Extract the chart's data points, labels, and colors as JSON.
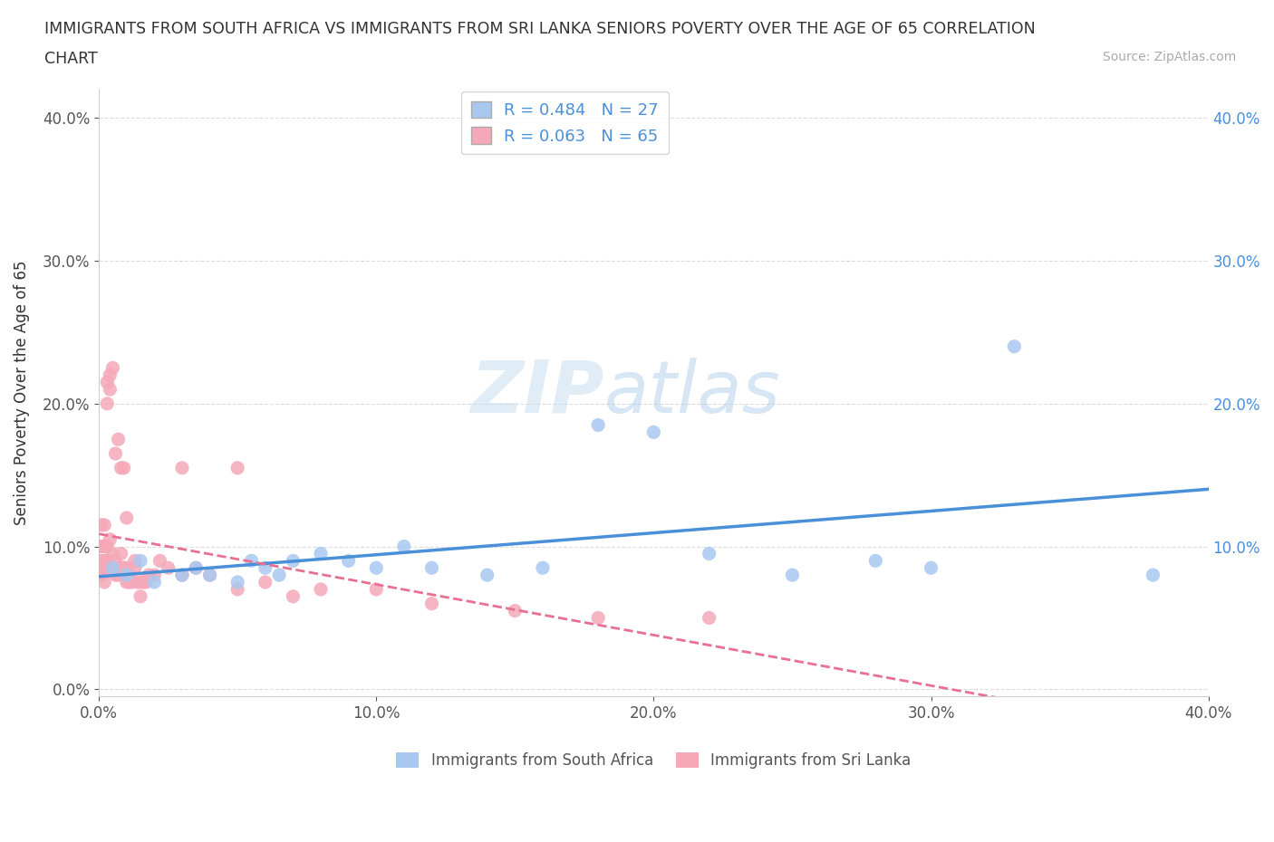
{
  "title_line1": "IMMIGRANTS FROM SOUTH AFRICA VS IMMIGRANTS FROM SRI LANKA SENIORS POVERTY OVER THE AGE OF 65 CORRELATION",
  "title_line2": "CHART",
  "source_text": "Source: ZipAtlas.com",
  "ylabel": "Seniors Poverty Over the Age of 65",
  "watermark_zip": "ZIP",
  "watermark_atlas": "atlas",
  "R_south_africa": 0.484,
  "N_south_africa": 27,
  "R_sri_lanka": 0.063,
  "N_sri_lanka": 65,
  "color_south_africa": "#a8c8f0",
  "color_sri_lanka": "#f5a8b8",
  "trendline_color_south_africa": "#4a90d9",
  "trendline_color_sri_lanka": "#e87090",
  "xlim": [
    0.0,
    0.4
  ],
  "ylim": [
    -0.005,
    0.42
  ],
  "xticks": [
    0.0,
    0.1,
    0.2,
    0.3,
    0.4
  ],
  "yticks": [
    0.0,
    0.1,
    0.2,
    0.3,
    0.4
  ],
  "south_africa_x": [
    0.005,
    0.01,
    0.015,
    0.02,
    0.03,
    0.035,
    0.04,
    0.05,
    0.055,
    0.06,
    0.065,
    0.07,
    0.08,
    0.09,
    0.1,
    0.11,
    0.12,
    0.14,
    0.16,
    0.18,
    0.2,
    0.22,
    0.25,
    0.28,
    0.3,
    0.33,
    0.38
  ],
  "south_africa_y": [
    0.085,
    0.08,
    0.09,
    0.075,
    0.08,
    0.085,
    0.08,
    0.075,
    0.09,
    0.085,
    0.08,
    0.09,
    0.095,
    0.09,
    0.085,
    0.1,
    0.085,
    0.08,
    0.085,
    0.185,
    0.18,
    0.095,
    0.08,
    0.09,
    0.085,
    0.24,
    0.08
  ],
  "sri_lanka_x": [
    0.0,
    0.0,
    0.0,
    0.001,
    0.001,
    0.001,
    0.001,
    0.001,
    0.002,
    0.002,
    0.002,
    0.002,
    0.003,
    0.003,
    0.003,
    0.003,
    0.003,
    0.004,
    0.004,
    0.004,
    0.004,
    0.005,
    0.005,
    0.005,
    0.006,
    0.006,
    0.006,
    0.007,
    0.007,
    0.008,
    0.008,
    0.008,
    0.009,
    0.009,
    0.01,
    0.01,
    0.01,
    0.011,
    0.011,
    0.012,
    0.013,
    0.013,
    0.014,
    0.015,
    0.015,
    0.016,
    0.017,
    0.018,
    0.02,
    0.022,
    0.025,
    0.03,
    0.03,
    0.035,
    0.04,
    0.05,
    0.05,
    0.06,
    0.07,
    0.08,
    0.1,
    0.12,
    0.15,
    0.18,
    0.22
  ],
  "sri_lanka_y": [
    0.08,
    0.09,
    0.1,
    0.085,
    0.09,
    0.1,
    0.115,
    0.08,
    0.075,
    0.09,
    0.1,
    0.115,
    0.085,
    0.09,
    0.1,
    0.2,
    0.215,
    0.085,
    0.105,
    0.22,
    0.21,
    0.085,
    0.095,
    0.225,
    0.08,
    0.09,
    0.165,
    0.08,
    0.175,
    0.085,
    0.095,
    0.155,
    0.085,
    0.155,
    0.075,
    0.085,
    0.12,
    0.08,
    0.075,
    0.075,
    0.085,
    0.09,
    0.075,
    0.075,
    0.065,
    0.075,
    0.075,
    0.08,
    0.08,
    0.09,
    0.085,
    0.08,
    0.155,
    0.085,
    0.08,
    0.07,
    0.155,
    0.075,
    0.065,
    0.07,
    0.07,
    0.06,
    0.055,
    0.05,
    0.05
  ],
  "legend_south_africa": "Immigrants from South Africa",
  "legend_sri_lanka": "Immigrants from Sri Lanka",
  "background_color": "#ffffff",
  "grid_color": "#dddddd",
  "right_axis_color": "#4a90d9",
  "tick_label_color": "#555555"
}
